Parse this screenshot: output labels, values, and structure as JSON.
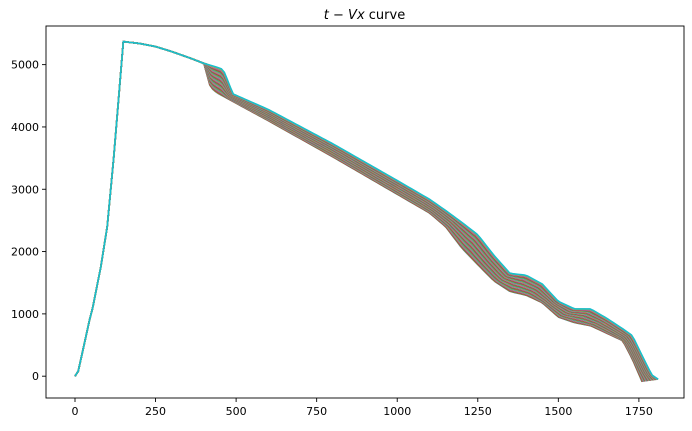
{
  "chart_data": {
    "type": "line",
    "title": "t − Vx curve",
    "title_parts": {
      "math": "t − Vx",
      "text": " curve"
    },
    "xlabel": "",
    "ylabel": "",
    "xlim": [
      -90,
      1890
    ],
    "ylim": [
      -350,
      5620
    ],
    "x_ticks": [
      0,
      250,
      500,
      750,
      1000,
      1250,
      1500,
      1750
    ],
    "x_tick_labels": [
      "0",
      "250",
      "500",
      "750",
      "1000",
      "1250",
      "1500",
      "1750"
    ],
    "y_ticks": [
      0,
      1000,
      2000,
      3000,
      4000,
      5000
    ],
    "y_tick_labels": [
      "0",
      "1000",
      "2000",
      "3000",
      "4000",
      "5000"
    ],
    "grid": false,
    "legend": "none",
    "series_count": 60,
    "series_colors": [
      "#1f77b4",
      "#ff7f0e",
      "#2ca02c",
      "#d62728",
      "#9467bd",
      "#8c564b",
      "#e377c2",
      "#7f7f7f",
      "#bcbd22",
      "#17becf"
    ],
    "shared_rise": {
      "x": [
        0,
        10,
        25,
        45,
        55,
        80,
        100,
        120,
        150
      ],
      "y": [
        0,
        80,
        430,
        900,
        1100,
        1750,
        2400,
        3500,
        5370
      ]
    },
    "envelope_lower": {
      "x": [
        150,
        200,
        250,
        300,
        360,
        400,
        420,
        440,
        600,
        800,
        1000,
        1100,
        1150,
        1200,
        1250,
        1300,
        1350,
        1400,
        1450,
        1500,
        1550,
        1600,
        1650,
        1700,
        1730,
        1760
      ],
      "y": [
        5370,
        5340,
        5290,
        5210,
        5100,
        5020,
        4640,
        4550,
        4100,
        3520,
        2920,
        2620,
        2400,
        2060,
        1790,
        1530,
        1360,
        1300,
        1180,
        950,
        860,
        810,
        690,
        570,
        270,
        -90
      ]
    },
    "envelope_upper": {
      "x": [
        150,
        200,
        250,
        300,
        360,
        400,
        440,
        460,
        475,
        490,
        600,
        800,
        1000,
        1100,
        1150,
        1200,
        1250,
        1300,
        1350,
        1400,
        1450,
        1500,
        1550,
        1600,
        1650,
        1700,
        1730,
        1760,
        1790,
        1810
      ],
      "y": [
        5370,
        5340,
        5290,
        5210,
        5100,
        5020,
        4960,
        4920,
        4730,
        4530,
        4280,
        3730,
        3140,
        2840,
        2660,
        2470,
        2270,
        1940,
        1650,
        1620,
        1480,
        1200,
        1080,
        1080,
        930,
        760,
        650,
        330,
        20,
        -50
      ]
    }
  }
}
